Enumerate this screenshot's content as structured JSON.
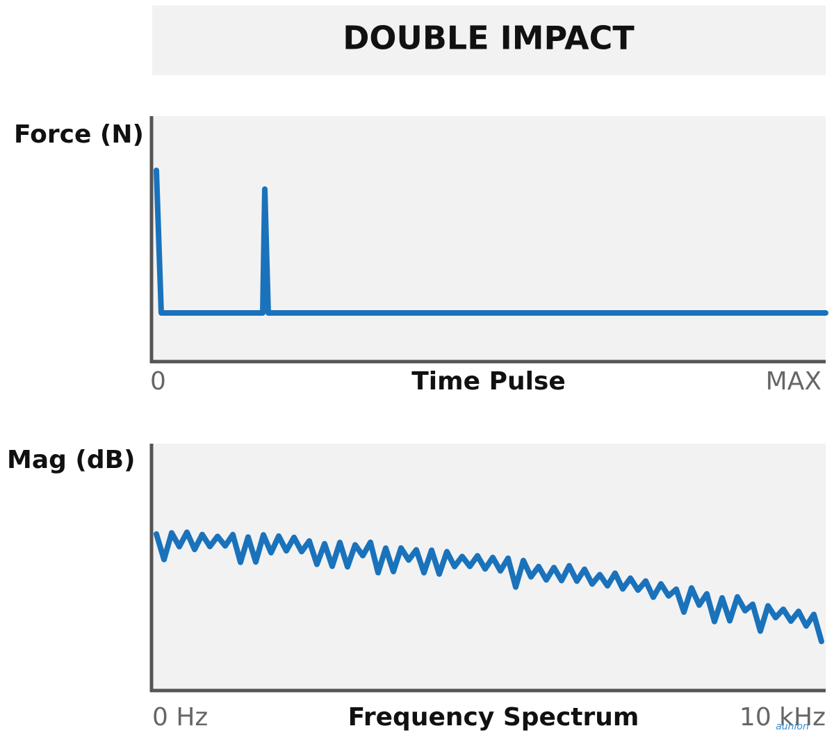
{
  "header": {
    "title": "DOUBLE IMPACT"
  },
  "panels": [
    {
      "y_label": "Force (N)",
      "x_label": "Time Pulse",
      "x_start": "0",
      "x_end": "MAX"
    },
    {
      "y_label": "Mag (dB)",
      "x_label": "Frequency Spectrum",
      "x_start": "0 Hz",
      "x_end": "10 kHz"
    }
  ],
  "watermark": "aunion"
}
